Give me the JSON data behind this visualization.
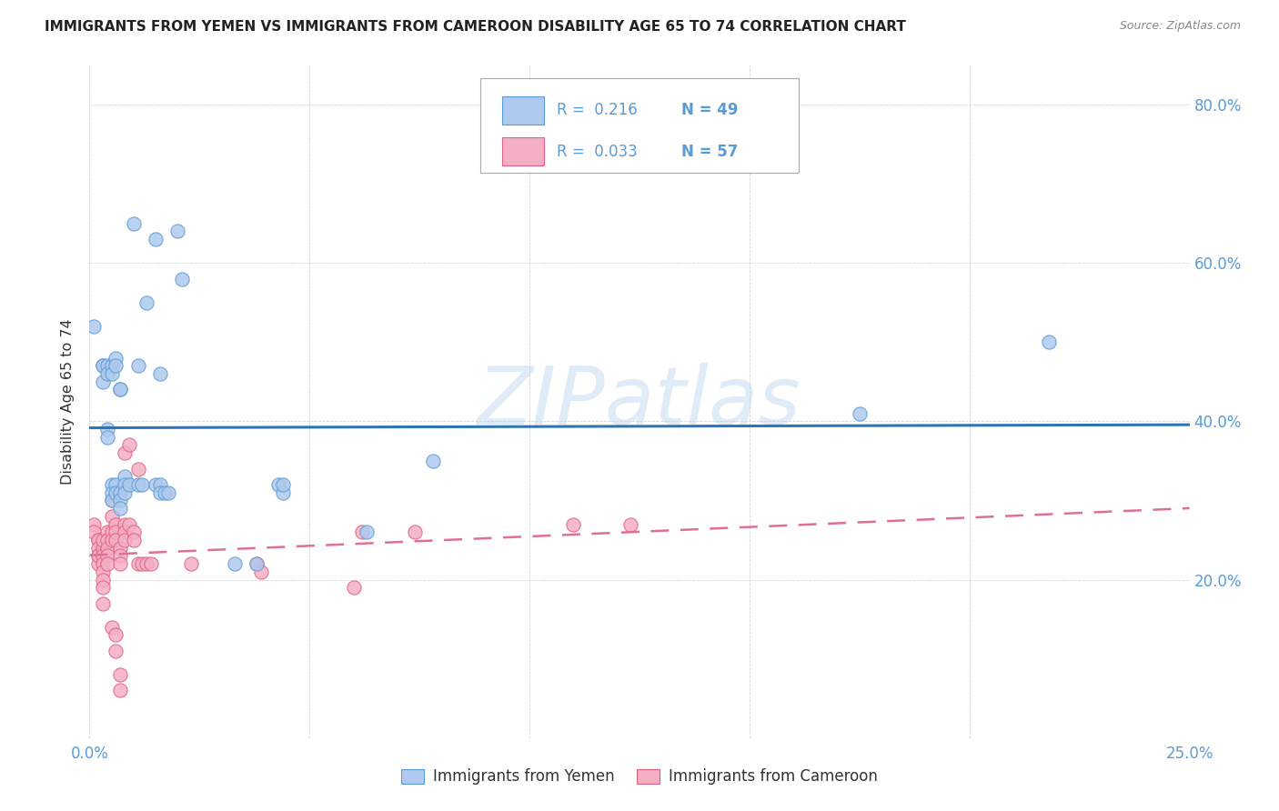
{
  "title": "IMMIGRANTS FROM YEMEN VS IMMIGRANTS FROM CAMEROON DISABILITY AGE 65 TO 74 CORRELATION CHART",
  "source": "Source: ZipAtlas.com",
  "ylabel": "Disability Age 65 to 74",
  "xlim": [
    0.0,
    0.25
  ],
  "ylim": [
    0.0,
    0.85
  ],
  "xtick_vals": [
    0.0,
    0.05,
    0.1,
    0.15,
    0.2,
    0.25
  ],
  "xtick_labels": [
    "0.0%",
    "",
    "",
    "",
    "",
    "25.0%"
  ],
  "ytick_vals": [
    0.0,
    0.2,
    0.4,
    0.6,
    0.8
  ],
  "ytick_labels": [
    "",
    "20.0%",
    "40.0%",
    "60.0%",
    "80.0%"
  ],
  "watermark": "ZIPatlas",
  "yemen_color": "#aec9ed",
  "cameroon_color": "#f4afc4",
  "yemen_edge_color": "#5b9bd5",
  "cameroon_edge_color": "#e06080",
  "yemen_line_color": "#2e75b6",
  "cameroon_line_color": "#e07090",
  "yemen_scatter": [
    [
      0.001,
      0.52
    ],
    [
      0.003,
      0.47
    ],
    [
      0.003,
      0.47
    ],
    [
      0.003,
      0.45
    ],
    [
      0.004,
      0.39
    ],
    [
      0.004,
      0.38
    ],
    [
      0.004,
      0.47
    ],
    [
      0.004,
      0.46
    ],
    [
      0.005,
      0.32
    ],
    [
      0.005,
      0.31
    ],
    [
      0.005,
      0.3
    ],
    [
      0.005,
      0.47
    ],
    [
      0.005,
      0.46
    ],
    [
      0.006,
      0.48
    ],
    [
      0.006,
      0.47
    ],
    [
      0.006,
      0.32
    ],
    [
      0.006,
      0.31
    ],
    [
      0.007,
      0.31
    ],
    [
      0.007,
      0.3
    ],
    [
      0.007,
      0.29
    ],
    [
      0.007,
      0.44
    ],
    [
      0.007,
      0.44
    ],
    [
      0.008,
      0.33
    ],
    [
      0.008,
      0.32
    ],
    [
      0.008,
      0.31
    ],
    [
      0.009,
      0.32
    ],
    [
      0.01,
      0.65
    ],
    [
      0.011,
      0.32
    ],
    [
      0.011,
      0.47
    ],
    [
      0.012,
      0.32
    ],
    [
      0.013,
      0.55
    ],
    [
      0.015,
      0.63
    ],
    [
      0.015,
      0.32
    ],
    [
      0.016,
      0.32
    ],
    [
      0.016,
      0.31
    ],
    [
      0.016,
      0.46
    ],
    [
      0.017,
      0.31
    ],
    [
      0.018,
      0.31
    ],
    [
      0.02,
      0.64
    ],
    [
      0.021,
      0.58
    ],
    [
      0.033,
      0.22
    ],
    [
      0.038,
      0.22
    ],
    [
      0.043,
      0.32
    ],
    [
      0.044,
      0.31
    ],
    [
      0.044,
      0.32
    ],
    [
      0.063,
      0.26
    ],
    [
      0.078,
      0.35
    ],
    [
      0.175,
      0.41
    ],
    [
      0.218,
      0.5
    ]
  ],
  "cameroon_scatter": [
    [
      0.001,
      0.27
    ],
    [
      0.001,
      0.26
    ],
    [
      0.002,
      0.25
    ],
    [
      0.002,
      0.25
    ],
    [
      0.002,
      0.24
    ],
    [
      0.002,
      0.23
    ],
    [
      0.002,
      0.22
    ],
    [
      0.002,
      0.23
    ],
    [
      0.003,
      0.24
    ],
    [
      0.003,
      0.23
    ],
    [
      0.003,
      0.22
    ],
    [
      0.003,
      0.21
    ],
    [
      0.003,
      0.2
    ],
    [
      0.003,
      0.19
    ],
    [
      0.003,
      0.17
    ],
    [
      0.003,
      0.25
    ],
    [
      0.004,
      0.26
    ],
    [
      0.004,
      0.25
    ],
    [
      0.004,
      0.24
    ],
    [
      0.004,
      0.23
    ],
    [
      0.004,
      0.22
    ],
    [
      0.005,
      0.26
    ],
    [
      0.005,
      0.25
    ],
    [
      0.005,
      0.3
    ],
    [
      0.005,
      0.28
    ],
    [
      0.005,
      0.14
    ],
    [
      0.006,
      0.13
    ],
    [
      0.006,
      0.27
    ],
    [
      0.006,
      0.26
    ],
    [
      0.006,
      0.25
    ],
    [
      0.006,
      0.11
    ],
    [
      0.007,
      0.08
    ],
    [
      0.007,
      0.06
    ],
    [
      0.007,
      0.24
    ],
    [
      0.007,
      0.23
    ],
    [
      0.007,
      0.22
    ],
    [
      0.008,
      0.27
    ],
    [
      0.008,
      0.26
    ],
    [
      0.008,
      0.25
    ],
    [
      0.008,
      0.36
    ],
    [
      0.009,
      0.37
    ],
    [
      0.009,
      0.27
    ],
    [
      0.01,
      0.26
    ],
    [
      0.01,
      0.25
    ],
    [
      0.011,
      0.34
    ],
    [
      0.011,
      0.22
    ],
    [
      0.012,
      0.22
    ],
    [
      0.013,
      0.22
    ],
    [
      0.014,
      0.22
    ],
    [
      0.023,
      0.22
    ],
    [
      0.038,
      0.22
    ],
    [
      0.039,
      0.21
    ],
    [
      0.06,
      0.19
    ],
    [
      0.062,
      0.26
    ],
    [
      0.074,
      0.26
    ],
    [
      0.11,
      0.27
    ],
    [
      0.123,
      0.27
    ]
  ]
}
